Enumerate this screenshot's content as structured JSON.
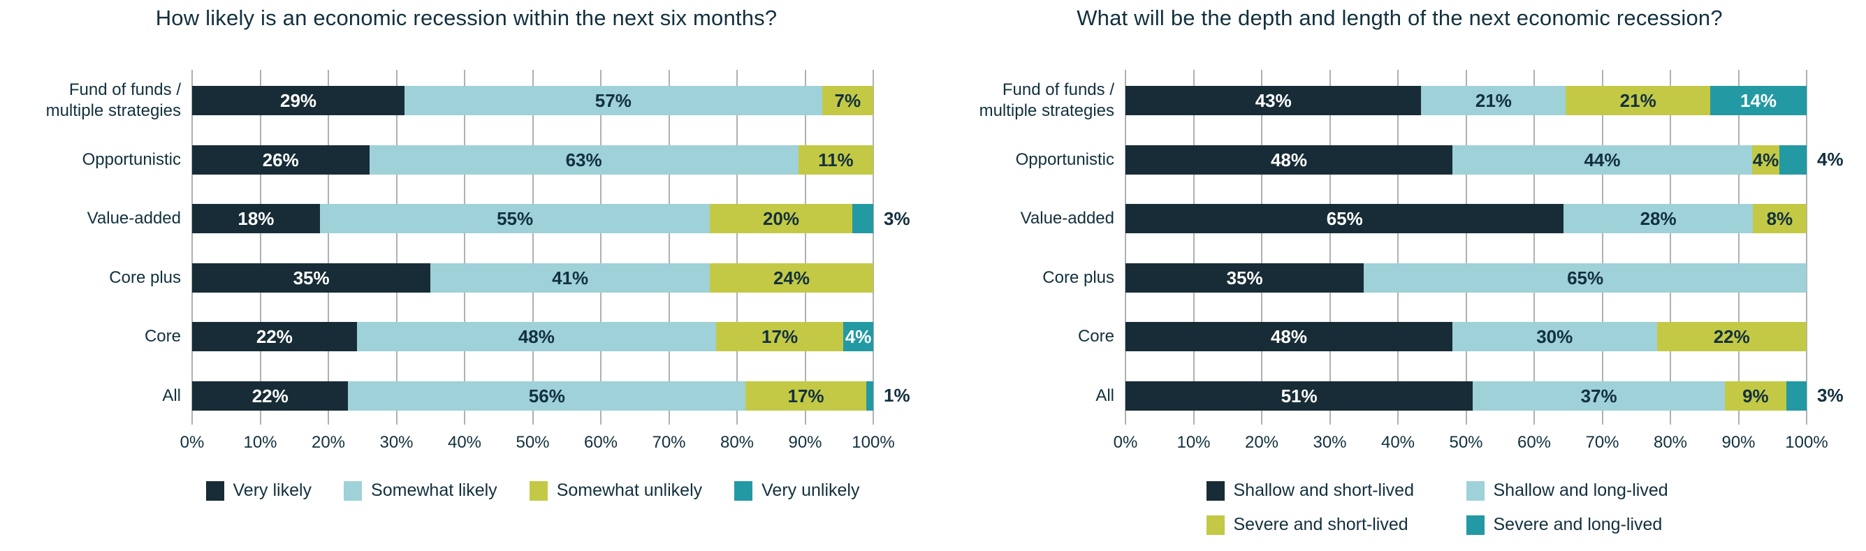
{
  "page": {
    "background": "#FFFFFF"
  },
  "colors": {
    "navy": "#172C36",
    "light_blue": "#9FD1D8",
    "olive": "#C3C945",
    "teal": "#2399A3",
    "text": "#12303E",
    "grid": "#ADB1B4"
  },
  "chart_data": [
    {
      "type": "bar",
      "stacked": true,
      "orientation": "horizontal",
      "title": "How likely is an economic recession within the next six months?",
      "categories": [
        "Fund of funds /\nmultiple strategies",
        "Opportunistic",
        "Value-added",
        "Core plus",
        "Core",
        "All"
      ],
      "series": [
        {
          "name": "Very likely",
          "color_key": "navy",
          "values": [
            29,
            26,
            18,
            35,
            22,
            22
          ]
        },
        {
          "name": "Somewhat likely",
          "color_key": "light_blue",
          "values": [
            57,
            63,
            55,
            41,
            48,
            56
          ]
        },
        {
          "name": "Somewhat unlikely",
          "color_key": "olive",
          "values": [
            7,
            11,
            20,
            24,
            17,
            17
          ]
        },
        {
          "name": "Very unlikely",
          "color_key": "teal",
          "values": [
            0,
            0,
            3,
            0,
            4,
            1
          ]
        }
      ],
      "value_label_format": "percent",
      "outside_labels": [
        [
          3,
          2
        ],
        [
          3,
          5
        ]
      ],
      "axis": {
        "min": 0,
        "max": 100,
        "tick_labels": [
          "0%",
          "10%",
          "20%",
          "30%",
          "40%",
          "50%",
          "60%",
          "70%",
          "80%",
          "90%",
          "100%"
        ]
      },
      "grid": true,
      "legend_position": "bottom",
      "legend_layout": "row"
    },
    {
      "type": "bar",
      "stacked": true,
      "orientation": "horizontal",
      "title": "What will be the depth and length of the next economic recession?",
      "categories": [
        "Fund of funds /\nmultiple strategies",
        "Opportunistic",
        "Value-added",
        "Core plus",
        "Core",
        "All"
      ],
      "series": [
        {
          "name": "Shallow and short-lived",
          "color_key": "navy",
          "values": [
            43,
            48,
            65,
            35,
            48,
            51
          ]
        },
        {
          "name": "Shallow and long-lived",
          "color_key": "light_blue",
          "values": [
            21,
            44,
            28,
            65,
            30,
            37
          ]
        },
        {
          "name": "Severe and short-lived",
          "color_key": "olive",
          "values": [
            21,
            4,
            8,
            0,
            22,
            9
          ]
        },
        {
          "name": "Severe and long-lived",
          "color_key": "teal",
          "values": [
            14,
            4,
            0,
            0,
            0,
            3
          ]
        }
      ],
      "value_label_format": "percent",
      "outside_labels": [
        [
          3,
          1
        ],
        [
          3,
          5
        ]
      ],
      "axis": {
        "min": 0,
        "max": 100,
        "tick_labels": [
          "0%",
          "10%",
          "20%",
          "30%",
          "40%",
          "50%",
          "60%",
          "70%",
          "80%",
          "90%",
          "100%"
        ]
      },
      "grid": true,
      "legend_position": "bottom",
      "legend_layout": "grid2x2"
    }
  ]
}
